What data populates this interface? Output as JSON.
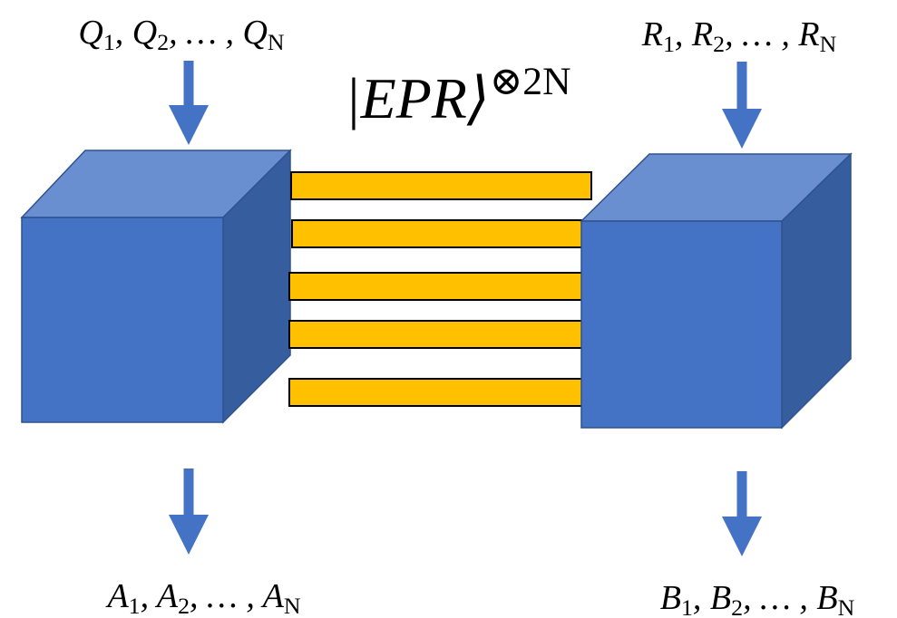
{
  "labels": {
    "left_input": [
      {
        "text": "Q"
      },
      {
        "subscript": "1"
      },
      {
        "text": ", Q"
      },
      {
        "subscript": "2"
      },
      {
        "text": ", … , Q"
      },
      {
        "subscript": "N"
      }
    ],
    "right_input": [
      {
        "text": "R"
      },
      {
        "subscript": "1"
      },
      {
        "text": ", R"
      },
      {
        "subscript": "2"
      },
      {
        "text": ", … , R"
      },
      {
        "subscript": "N"
      }
    ],
    "left_output": [
      {
        "text": "A"
      },
      {
        "subscript": "1"
      },
      {
        "text": ", A"
      },
      {
        "subscript": "2"
      },
      {
        "text": ", … , A"
      },
      {
        "subscript": "N"
      }
    ],
    "right_output": [
      {
        "text": "B"
      },
      {
        "subscript": "1"
      },
      {
        "text": ", B"
      },
      {
        "subscript": "2"
      },
      {
        "text": ", … , B"
      },
      {
        "subscript": "N"
      }
    ],
    "resource": [
      {
        "text": "|EPR⟩"
      },
      {
        "superscript": "⊗2N"
      }
    ]
  }
}
